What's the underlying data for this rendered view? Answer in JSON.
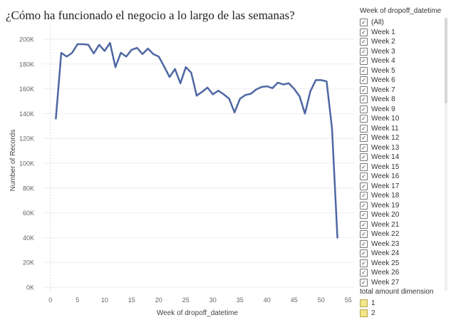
{
  "chart_title": "¿Cómo ha funcionado el negocio a lo largo de las semanas?",
  "filter": {
    "title": "Week of dropoff_datetime",
    "items": [
      "(All)",
      "Week 1",
      "Week 2",
      "Week 3",
      "Week 4",
      "Week 5",
      "Week 6",
      "Week 7",
      "Week 8",
      "Week 9",
      "Week 10",
      "Week 11",
      "Week 12",
      "Week 13",
      "Week 14",
      "Week 15",
      "Week 16",
      "Week 17",
      "Week 18",
      "Week 19",
      "Week 20",
      "Week 21",
      "Week 22",
      "Week 23",
      "Week 24",
      "Week 25",
      "Week 26",
      "Week 27"
    ],
    "check_glyph": "✓"
  },
  "legend": {
    "title": "total amount dimension",
    "items": [
      {
        "label": "1",
        "color": "#f2e58a"
      },
      {
        "label": "2",
        "color": "#f2e58a"
      }
    ]
  },
  "chart_data": {
    "type": "line",
    "title": "¿Cómo ha funcionado el negocio a lo largo de las semanas?",
    "xlabel": "Week of dropoff_datetime",
    "ylabel": "Number of Records",
    "xlim": [
      0,
      55
    ],
    "ylim": [
      0,
      200000
    ],
    "x_ticks": [
      0,
      5,
      10,
      15,
      20,
      25,
      30,
      35,
      40,
      45,
      50,
      55
    ],
    "y_ticks": [
      0,
      20000,
      40000,
      60000,
      80000,
      100000,
      120000,
      140000,
      160000,
      180000,
      200000
    ],
    "y_tick_labels": [
      "0K",
      "20K",
      "40K",
      "60K",
      "80K",
      "100K",
      "120K",
      "140K",
      "160K",
      "180K",
      "200K"
    ],
    "line_color": "#4e67a3",
    "series": [
      {
        "x": [
          1,
          2,
          3,
          4,
          5,
          6,
          7,
          8,
          9,
          10,
          11,
          12,
          13,
          14,
          15,
          16,
          17,
          18,
          19,
          20,
          21,
          22,
          23,
          24,
          25,
          26,
          27,
          28,
          29,
          30,
          31,
          32,
          33,
          34,
          35,
          36,
          37,
          38,
          39,
          40,
          41,
          42,
          43,
          44,
          45,
          46,
          47,
          48,
          49,
          50,
          51,
          52,
          53
        ],
        "values": [
          136000,
          189000,
          186000,
          189000,
          196000,
          196000,
          195500,
          188500,
          195500,
          190500,
          197000,
          177500,
          189000,
          186000,
          191500,
          193000,
          188000,
          192500,
          188000,
          186000,
          178000,
          169500,
          176000,
          164500,
          177500,
          173000,
          154500,
          157500,
          161000,
          155500,
          158500,
          155500,
          152000,
          141000,
          152000,
          155000,
          156000,
          159500,
          161500,
          162000,
          160500,
          165000,
          163500,
          164500,
          160000,
          154000,
          140000,
          158000,
          167000,
          167000,
          166000,
          128000,
          40000
        ]
      }
    ]
  }
}
